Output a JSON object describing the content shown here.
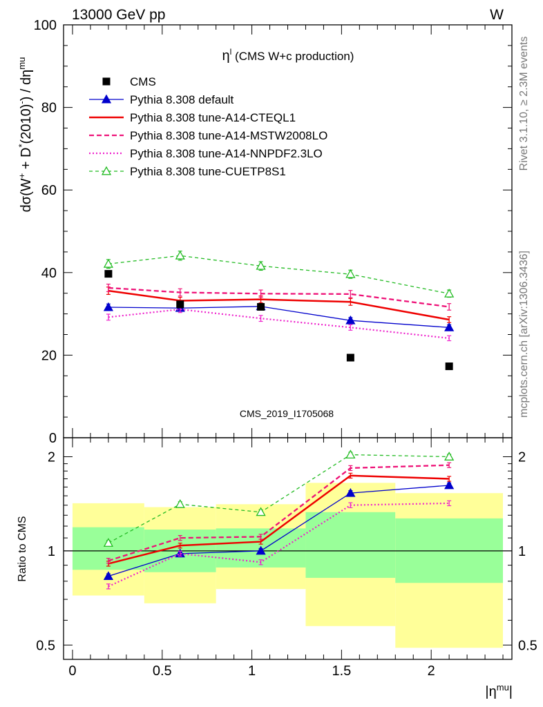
{
  "header": {
    "energy_label": "13000 GeV pp",
    "process_label": "W"
  },
  "side_labels": {
    "rivet": "Rivet 3.1.10, ≥ 2.3M events",
    "mcplots": "mcplots.cern.ch [arXiv:1306.3436]"
  },
  "colors": {
    "cms": "#000000",
    "default": "#0000cc",
    "cteql1": "#ee0000",
    "mstw": "#ee1177",
    "nnpdf": "#ee22cc",
    "cuetp8s1": "#22bb22",
    "band_yellow": "#ffff99",
    "band_green": "#99ff99"
  },
  "chart_data": [
    {
      "type": "line",
      "title": "η",
      "title_sup": "l",
      "title_rest": " (CMS W+c production)",
      "ylabel": "dσ(W+ + D*(2010)) / dη",
      "watermark": "CMS_2019_I1705068",
      "ylim": [
        0,
        100
      ],
      "yticks": [
        0,
        20,
        40,
        60,
        80,
        100
      ],
      "legend_position": "top-left",
      "x": [
        0.2,
        0.6,
        1.05,
        1.55,
        2.1
      ],
      "xedges": [
        0,
        0.4,
        0.8,
        1.3,
        1.8,
        2.4
      ],
      "series": [
        {
          "name": "CMS",
          "key": "cms",
          "values": [
            39.7,
            32.3,
            31.7,
            19.4,
            17.3
          ]
        },
        {
          "name": "Pythia 8.308 default",
          "key": "default",
          "values": [
            31.6,
            31.4,
            31.8,
            28.4,
            26.7
          ]
        },
        {
          "name": "Pythia 8.308 tune-A14-CTEQL1",
          "key": "cteql1",
          "values": [
            35.6,
            33.2,
            33.5,
            32.9,
            28.6
          ]
        },
        {
          "name": "Pythia 8.308 tune-A14-MSTW2008LO",
          "key": "mstw",
          "values": [
            36.3,
            35.2,
            34.9,
            34.8,
            31.7
          ]
        },
        {
          "name": "Pythia 8.308 tune-A14-NNPDF2.3LO",
          "key": "nnpdf",
          "values": [
            29.2,
            31.1,
            28.9,
            26.7,
            24.1
          ]
        },
        {
          "name": "Pythia 8.308 tune-CUETP8S1",
          "key": "cuetp8s1",
          "values": [
            42.1,
            44.1,
            41.6,
            39.6,
            34.9
          ]
        }
      ]
    },
    {
      "type": "line",
      "ylabel": "Ratio to CMS",
      "xlabel": "|η",
      "xlabel_sup": "mu",
      "xlabel_end": "|",
      "ylim": [
        0.45,
        2.3
      ],
      "yscale": "log",
      "yticks": [
        0.5,
        1,
        2
      ],
      "xlim": [
        -0.05,
        2.45
      ],
      "xticks": [
        0,
        0.5,
        1,
        1.5,
        2
      ],
      "x": [
        0.2,
        0.6,
        1.05,
        1.55,
        2.1
      ],
      "xedges": [
        0,
        0.4,
        0.8,
        1.3,
        1.8,
        2.4
      ],
      "band_green": {
        "lo": [
          0.87,
          0.855,
          0.885,
          0.82,
          0.79
        ],
        "hi": [
          1.19,
          1.17,
          1.18,
          1.33,
          1.27
        ]
      },
      "band_yellow": {
        "lo": [
          0.72,
          0.68,
          0.755,
          0.575,
          0.49
        ],
        "hi": [
          1.42,
          1.38,
          1.41,
          1.65,
          1.53
        ]
      },
      "series": [
        {
          "name": "Pythia 8.308 default",
          "key": "default",
          "values": [
            0.83,
            0.98,
            1.0,
            1.53,
            1.62
          ]
        },
        {
          "name": "Pythia 8.308 tune-A14-CTEQL1",
          "key": "cteql1",
          "values": [
            0.91,
            1.04,
            1.07,
            1.74,
            1.7
          ]
        },
        {
          "name": "Pythia 8.308 tune-A14-MSTW2008LO",
          "key": "mstw",
          "values": [
            0.93,
            1.1,
            1.11,
            1.84,
            1.88
          ]
        },
        {
          "name": "Pythia 8.308 tune-A14-NNPDF2.3LO",
          "key": "nnpdf",
          "values": [
            0.77,
            0.98,
            0.92,
            1.4,
            1.42
          ]
        },
        {
          "name": "Pythia 8.308 tune-CUETP8S1",
          "key": "cuetp8s1",
          "values": [
            1.06,
            1.41,
            1.33,
            2.03,
            2.0
          ]
        }
      ]
    }
  ]
}
